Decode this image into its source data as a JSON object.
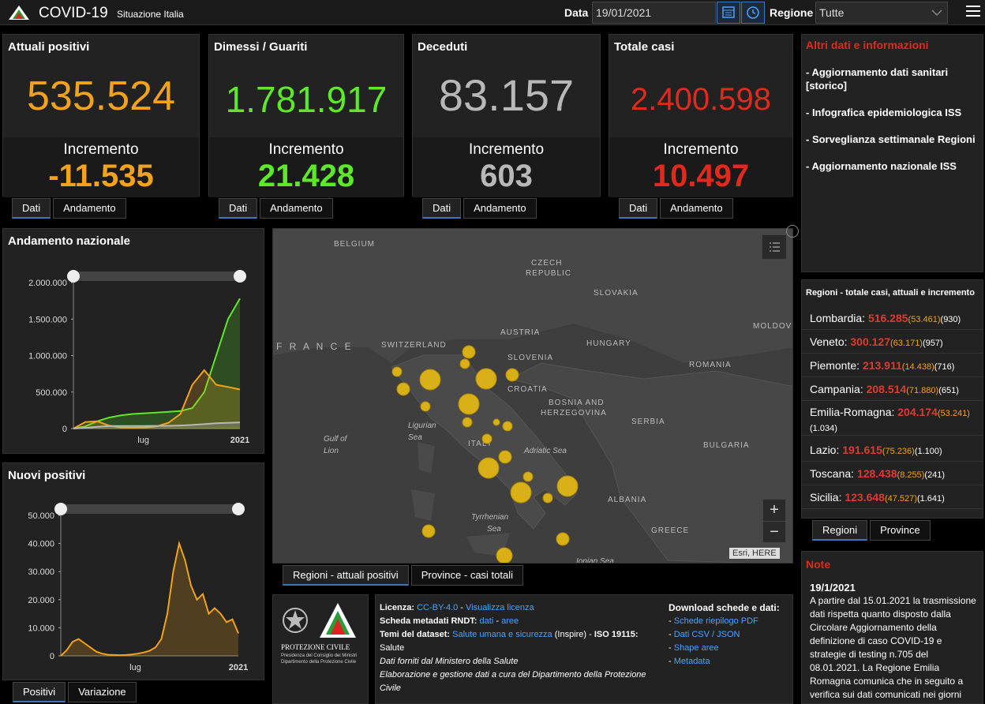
{
  "header": {
    "title": "COVID-19",
    "subtitle": "Situazione Italia",
    "date_label": "Data",
    "date_value": "19/01/2021",
    "region_label": "Regione",
    "region_value": "Tutte"
  },
  "cards": [
    {
      "title": "Attuali positivi",
      "value": "535.524",
      "inc_label": "Incremento",
      "inc_value": "-11.535",
      "color": "#f3a21b",
      "tab1": "Dati",
      "tab2": "Andamento"
    },
    {
      "title": "Dimessi / Guariti",
      "value": "1.781.917",
      "inc_label": "Incremento",
      "inc_value": "21.428",
      "color": "#5ee82a",
      "tab1": "Dati",
      "tab2": "Andamento"
    },
    {
      "title": "Deceduti",
      "value": "83.157",
      "inc_label": "Incremento",
      "inc_value": "603",
      "color": "#b8b8b8",
      "tab1": "Dati",
      "tab2": "Andamento"
    },
    {
      "title": "Totale casi",
      "value": "2.400.598",
      "inc_label": "Incremento",
      "inc_value": "10.497",
      "color": "#e02a1e",
      "tab1": "Dati",
      "tab2": "Andamento"
    }
  ],
  "andamento": {
    "title": "Andamento nazionale",
    "yticks": [
      "2.000.000",
      "1.500.000",
      "1.000.000",
      "500.000",
      "0"
    ],
    "xticks": [
      "lug",
      "2021"
    ]
  },
  "nuovi": {
    "title": "Nuovi positivi",
    "yticks": [
      "50.000",
      "40.000",
      "30.000",
      "20.000",
      "10.000",
      "0"
    ],
    "xticks": [
      "lug",
      "2021"
    ],
    "tab1": "Positivi",
    "tab2": "Variazione"
  },
  "chart_data": [
    {
      "type": "line",
      "title": "Andamento nazionale",
      "yticks": [
        "2.000.000",
        "1.500.000",
        "1.000.000",
        "500.000",
        "0"
      ],
      "xticks": [
        "lug",
        "2021"
      ],
      "ylim": [
        0,
        2000000
      ],
      "series": [
        {
          "color": "#5ee82a",
          "values": [
            0,
            30000,
            100000,
            150000,
            180000,
            200000,
            210000,
            220000,
            230000,
            240000,
            280000,
            500000,
            1000000,
            1500000,
            1781917
          ]
        },
        {
          "color": "#f3a21b",
          "values": [
            0,
            90000,
            100000,
            40000,
            15000,
            12000,
            15000,
            30000,
            80000,
            200000,
            600000,
            800000,
            600000,
            570000,
            535524
          ]
        },
        {
          "color": "#b8b8b8",
          "values": [
            0,
            10000,
            25000,
            33000,
            35000,
            35500,
            36000,
            36500,
            38000,
            42000,
            50000,
            60000,
            72000,
            78000,
            83157
          ]
        }
      ]
    },
    {
      "type": "area",
      "title": "Nuovi positivi",
      "yticks": [
        "50.000",
        "40.000",
        "30.000",
        "20.000",
        "10.000",
        "0"
      ],
      "xticks": [
        "lug",
        "2021"
      ],
      "ylim": [
        0,
        50000
      ],
      "series": [
        {
          "color": "#f3a21b",
          "values": [
            0,
            2000,
            5000,
            6000,
            4500,
            3000,
            1500,
            800,
            400,
            300,
            250,
            300,
            500,
            800,
            1200,
            1800,
            3000,
            6000,
            15000,
            30000,
            40000,
            34000,
            25000,
            20000,
            22000,
            15000,
            17000,
            15000,
            12000,
            13000,
            8000
          ]
        }
      ]
    }
  ],
  "map": {
    "labels": [
      "BELGIUM",
      "CZECH",
      "REPUBLIC",
      "SLOVAKIA",
      "AUSTRIA",
      "HUNGARY",
      "MOLDOV",
      "F R A N C E",
      "SWITZERLAND",
      "SLOVENIA",
      "ROMANIA",
      "CROATIA",
      "BOSNIA AND",
      "HERZEGOVINA",
      "SERBIA",
      "BULGARIA",
      "ITALY",
      "ALBANIA",
      "GREECE",
      "Gulf of",
      "Lion",
      "Ligurian",
      "Sea",
      "Adriatic Sea",
      "Tyrrhenian",
      "Sea",
      "Ionian Sea"
    ],
    "attribution": "Esri, HERE",
    "tab1": "Regioni - attuali positivi",
    "tab2": "Province - casi totali"
  },
  "side": {
    "title": "Altri dati e informazioni",
    "links": [
      "- Aggiornamento dati sanitari",
      "[storico]",
      "- Infografica epidemiologica ISS",
      "- Sorveglianza settimanale Regioni",
      "- Aggiornamento nazionale ISS"
    ]
  },
  "regions": {
    "title": "Regioni - totale casi, attuali e incremento",
    "tab1": "Regioni",
    "tab2": "Province",
    "rows": [
      {
        "name": "Lombardia:",
        "total": "516.285",
        "active": "(53.461)",
        "inc": "(930)"
      },
      {
        "name": "Veneto:",
        "total": "300.127",
        "active": "(63.171)",
        "inc": "(957)"
      },
      {
        "name": "Piemonte:",
        "total": "213.911",
        "active": "(14.438)",
        "inc": "(716)"
      },
      {
        "name": "Campania:",
        "total": "208.514",
        "active": "(71.880)",
        "inc": "(651)"
      },
      {
        "name": "Emilia-Romagna:",
        "total": "204.174",
        "active": "(53.241)",
        "inc": "(1.034)"
      },
      {
        "name": "Lazio:",
        "total": "191.615",
        "active": "(75.236)",
        "inc": "(1.100)"
      },
      {
        "name": "Toscana:",
        "total": "128.438",
        "active": "(8.255)",
        "inc": "(241)"
      },
      {
        "name": "Sicilia:",
        "total": "123.648",
        "active": "(47.527)",
        "inc": "(1.641)"
      }
    ]
  },
  "note": {
    "title": "Note",
    "date": "19/1/2021",
    "lines": [
      "A partire dal 15.01.2021 la trasmissione",
      "dati rispetta quanto disposto dalla",
      "Circolare Aggiornamento della",
      "definizione di caso COVID-19 e",
      "strategie di testing n.705 del",
      "08.01.2021. La Regione Emilia",
      "Romagna comunica che in seguito a",
      "verifica sui dati comunicati nei giorni"
    ]
  },
  "footer": {
    "org1": "PROTEZIONE CIVILE",
    "org2": "Presidenza del Consiglio dei Ministri",
    "org3": "Dipartimento della Protezione Civile",
    "lic_label": "Licenza:",
    "lic_val": "CC-BY-4.0",
    "lic_sep": " - ",
    "lic_link": "Visualizza licenza",
    "meta_label": "Scheda metadati RNDT:",
    "meta_val": "dati",
    "meta_sep": " - ",
    "meta_link": "aree",
    "temi_label": "Temi del dataset:",
    "temi_val": "Salute umana e sicurezza",
    "temi_rest": " (Inspire) - ",
    "iso": "ISO 19115:",
    "temi_sal": "Salute",
    "src1": "Dati forniti dal Ministero della Salute",
    "src2": "Elaborazione e gestione dati a cura del Dipartimento della Protezione",
    "src3": "Civile",
    "dl_title": "Download schede e dati:",
    "dl": [
      "Schede riepilogo PDF",
      "Dati CSV / JSON",
      "Shape aree",
      "Metadata"
    ]
  }
}
